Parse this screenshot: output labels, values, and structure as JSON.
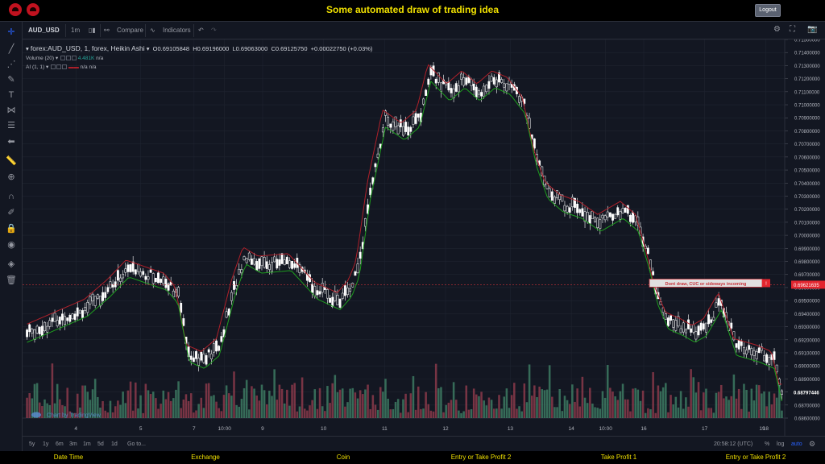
{
  "app": {
    "title": "Some automated draw of trading idea",
    "logout_label": "Logout"
  },
  "toolbar": {
    "symbol": "AUD_USD",
    "interval": "1m",
    "compare": "Compare",
    "indicators": "Indicators"
  },
  "legend": {
    "symbol": "forex:AUD_USD, 1, forex, Heikin Ashi",
    "o": "O0.69105848",
    "h": "H0.69196000",
    "l": "L0.69063000",
    "c": "C0.69125750",
    "change": "+0.00022750 (+0.03%)",
    "volume_label": "Volume (20)",
    "volume_value": "4.481K",
    "volume_na": "n/a",
    "ai_label": "AI (1, 1)",
    "ai_na1": "n/a",
    "ai_na2": "n/a"
  },
  "annotation": {
    "text": "Dont draw, CUC or sideways incoming",
    "badge": "!"
  },
  "watermark": "Chart by TradingView",
  "bottom": {
    "ranges": [
      "5y",
      "1y",
      "6m",
      "3m",
      "1m",
      "5d",
      "1d"
    ],
    "goto": "Go to...",
    "time": "20:58:12 (UTC)",
    "percent": "%",
    "log": "log",
    "auto": "auto"
  },
  "columns": [
    "Date Time",
    "Exchange",
    "Coin",
    "Entry or Take Profit 2",
    "Take Profit 1",
    "Entry or Take Profit 2"
  ],
  "colors": {
    "background": "#131722",
    "grid": "#1f2430",
    "candle": "#ffffff",
    "line_up": "#1e9e1e",
    "line_down": "#b0202a",
    "vol_up": "#3d7a62",
    "vol_down": "#8b3a4a",
    "price_badge": "#e3262f",
    "accent": "#f0e000"
  },
  "chart_data": {
    "type": "candlestick",
    "chart_style": "Heikin Ashi",
    "y_axis": {
      "min": 0.686,
      "max": 0.715,
      "step": 0.001
    },
    "y_ticks": [
      "0.71500000",
      "0.71400000",
      "0.71300000",
      "0.71200000",
      "0.71100000",
      "0.71000000",
      "0.70900000",
      "0.70800000",
      "0.70700000",
      "0.70600000",
      "0.70500000",
      "0.70400000",
      "0.70300000",
      "0.70200000",
      "0.70100000",
      "0.70000000",
      "0.69900000",
      "0.69800000",
      "0.69700000",
      "0.69600000",
      "0.69500000",
      "0.69400000",
      "0.69300000",
      "0.69200000",
      "0.69100000",
      "0.69000000",
      "0.68900000",
      "0.68800000",
      "0.68700000",
      "0.68600000"
    ],
    "current_price": "0.69621635",
    "current_price_value": 0.69621635,
    "last_close": "0.68797446",
    "last_close_value": 0.68797446,
    "x_ticks": [
      "4",
      "5",
      "7",
      "10:00",
      "9",
      "10",
      "11",
      "12",
      "13",
      "14",
      "10:00",
      "16",
      "17",
      "18",
      "19"
    ],
    "x_tick_pos": [
      0.07,
      0.155,
      0.225,
      0.265,
      0.315,
      0.395,
      0.475,
      0.555,
      0.64,
      0.72,
      0.765,
      0.815,
      0.895,
      0.975,
      1.05
    ],
    "price_path": [
      [
        0.0,
        0.6925
      ],
      [
        0.04,
        0.6935
      ],
      [
        0.08,
        0.6945
      ],
      [
        0.11,
        0.696
      ],
      [
        0.135,
        0.6975
      ],
      [
        0.16,
        0.697
      ],
      [
        0.185,
        0.6965
      ],
      [
        0.2,
        0.6955
      ],
      [
        0.215,
        0.691
      ],
      [
        0.235,
        0.6905
      ],
      [
        0.255,
        0.6915
      ],
      [
        0.275,
        0.696
      ],
      [
        0.29,
        0.6985
      ],
      [
        0.31,
        0.6978
      ],
      [
        0.35,
        0.698
      ],
      [
        0.385,
        0.6958
      ],
      [
        0.415,
        0.695
      ],
      [
        0.43,
        0.696
      ],
      [
        0.44,
        0.6975
      ],
      [
        0.455,
        0.7035
      ],
      [
        0.475,
        0.709
      ],
      [
        0.5,
        0.708
      ],
      [
        0.52,
        0.709
      ],
      [
        0.535,
        0.7125
      ],
      [
        0.56,
        0.711
      ],
      [
        0.58,
        0.712
      ],
      [
        0.6,
        0.711
      ],
      [
        0.62,
        0.712
      ],
      [
        0.64,
        0.7115
      ],
      [
        0.66,
        0.71
      ],
      [
        0.675,
        0.706
      ],
      [
        0.69,
        0.7035
      ],
      [
        0.71,
        0.7025
      ],
      [
        0.735,
        0.702
      ],
      [
        0.76,
        0.701
      ],
      [
        0.79,
        0.702
      ],
      [
        0.81,
        0.701
      ],
      [
        0.825,
        0.698
      ],
      [
        0.835,
        0.6955
      ],
      [
        0.85,
        0.6935
      ],
      [
        0.87,
        0.693
      ],
      [
        0.885,
        0.6925
      ],
      [
        0.9,
        0.693
      ],
      [
        0.92,
        0.695
      ],
      [
        0.94,
        0.6915
      ],
      [
        0.97,
        0.691
      ],
      [
        0.99,
        0.6905
      ],
      [
        1.0,
        0.688
      ]
    ]
  }
}
